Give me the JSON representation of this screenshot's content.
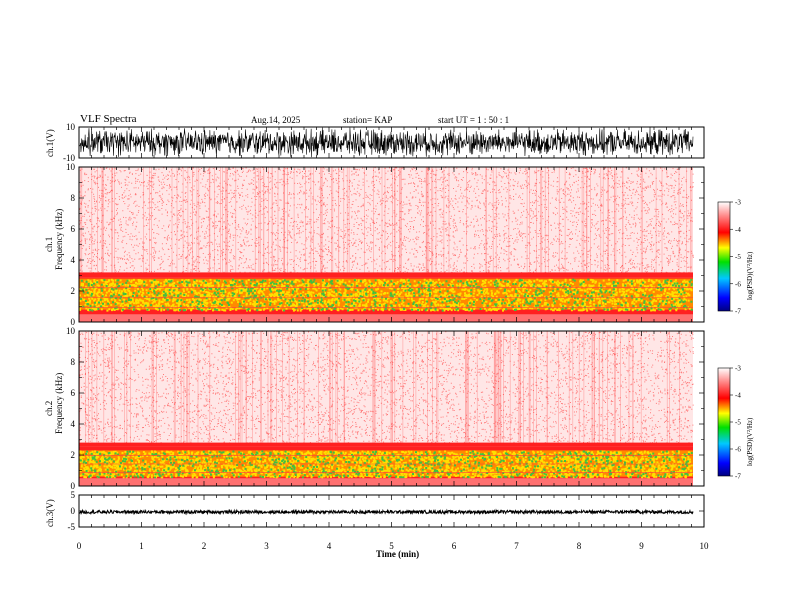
{
  "header": {
    "title": "VLF Spectra",
    "date": "Aug.14, 2025",
    "station": "station= KAP",
    "start": "start  UT =   1 : 50 : 1"
  },
  "colors": {
    "spectrogram_bg": "#ffe6e6",
    "spectrogram_dense": "#ff2020",
    "band_yellow": "#ffe000",
    "band_green": "#40c040",
    "waveform": "#000000"
  },
  "chart_data": [
    {
      "type": "line",
      "name": "ch1-waveform",
      "ylabel": "ch.1(V)",
      "ylim": [
        -10,
        10
      ],
      "yticks": [
        "10",
        "-10"
      ],
      "xlim": [
        0,
        10
      ],
      "description_only_visual": "dense oscillating waveform spanning most of the range",
      "amplitude_range": [
        -10,
        10
      ]
    },
    {
      "type": "heatmap",
      "name": "ch1-spectrogram",
      "ylabel": "ch.1 Frequency (kHz)",
      "ylabel_lines": [
        "ch.1",
        "Frequency  (kHz)"
      ],
      "ylim": [
        0,
        10
      ],
      "yticks": [
        "0",
        "2",
        "4",
        "6",
        "8",
        "10"
      ],
      "xlim": [
        0,
        9.83
      ],
      "bands_khz": [
        {
          "from": 0,
          "to": 3.2,
          "level": "high"
        },
        {
          "from": 0.8,
          "to": 2.8,
          "level": "peak"
        }
      ],
      "colorbar": {
        "label": "log(PSD)(V²/Hz)",
        "range": [
          -7,
          -3
        ],
        "ticks": [
          "-3",
          "-4",
          "-5",
          "-6",
          "-7"
        ]
      }
    },
    {
      "type": "heatmap",
      "name": "ch2-spectrogram",
      "ylabel": "ch.2 Frequency (kHz)",
      "ylabel_lines": [
        "ch.2",
        "Frequency  (kHz)"
      ],
      "ylim": [
        0,
        10
      ],
      "yticks": [
        "0",
        "2",
        "4",
        "6",
        "8",
        "10"
      ],
      "xlim": [
        0,
        9.83
      ],
      "bands_khz": [
        {
          "from": 0,
          "to": 2.8,
          "level": "high"
        },
        {
          "from": 0.6,
          "to": 2.3,
          "level": "peak"
        }
      ],
      "colorbar": {
        "label": "log(PSD)(V²/Hz)",
        "range": [
          -7,
          -3
        ],
        "ticks": [
          "-3",
          "-4",
          "-5",
          "-6",
          "-7"
        ]
      }
    },
    {
      "type": "line",
      "name": "ch3-waveform",
      "ylabel": "ch.3(V)",
      "ylim": [
        -5,
        5
      ],
      "yticks": [
        "5",
        "0",
        "-5"
      ],
      "xlim": [
        0,
        10
      ],
      "amplitude_range": [
        -0.8,
        0.2
      ]
    }
  ],
  "xaxis": {
    "label": "Time  (min)",
    "ticks": [
      "0",
      "1",
      "2",
      "3",
      "4",
      "5",
      "6",
      "7",
      "8",
      "9",
      "10"
    ],
    "range": [
      0,
      10
    ]
  }
}
